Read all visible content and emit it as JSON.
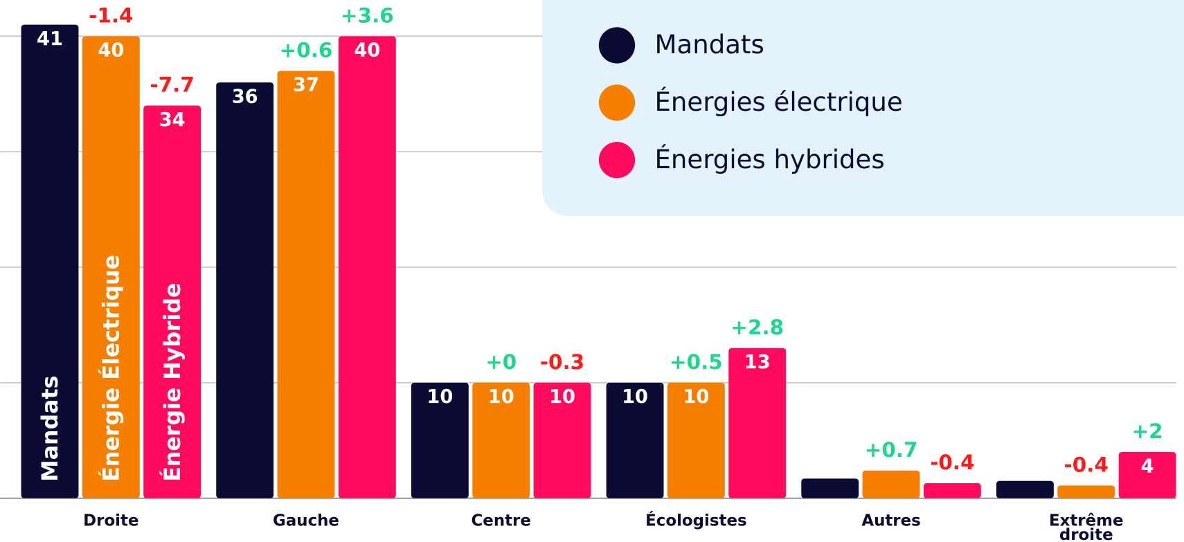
{
  "chart_data": {
    "type": "bar",
    "categories": [
      "Droite",
      "Gauche",
      "Centre",
      "Écologistes",
      "Autres",
      "Extrême droite"
    ],
    "series": [
      {
        "name": "Mandats",
        "inner_label": "Mandats",
        "color": "#0b0b33",
        "values": [
          41,
          36,
          10,
          10,
          1.7,
          1.5
        ],
        "value_labels": [
          "41",
          "36",
          "10",
          "10",
          null,
          null
        ]
      },
      {
        "name": "Énergies électrique",
        "inner_label": "Énergie Électrique",
        "color": "#f77f00",
        "values": [
          40,
          37,
          10,
          10,
          2.4,
          1.1
        ],
        "value_labels": [
          "40",
          "37",
          "10",
          "10",
          null,
          null
        ],
        "changes": [
          -1.4,
          0.6,
          0,
          0.5,
          0.7,
          -0.4
        ],
        "change_labels": [
          "-1.4",
          "+0.6",
          "+0",
          "+0.5",
          "+0.7",
          "-0.4"
        ]
      },
      {
        "name": "Énergies hybrides",
        "inner_label": "Énergie Hybride",
        "color": "#ff0a5c",
        "values": [
          34,
          40,
          10,
          13,
          1.3,
          4
        ],
        "value_labels": [
          "34",
          "40",
          "10",
          "13",
          null,
          "4"
        ],
        "changes": [
          -7.7,
          3.6,
          -0.3,
          2.8,
          -0.4,
          2
        ],
        "change_labels": [
          "-7.7",
          "+3.6",
          "-0.3",
          "+2.8",
          "-0.4",
          "+2"
        ]
      }
    ],
    "positive_color": "#1fd68c",
    "negative_color": "#ff1a1a",
    "ylim": [
      0,
      40
    ],
    "yticks": [
      0,
      10,
      20,
      30,
      40
    ],
    "grid": true,
    "legend": "top-right"
  }
}
